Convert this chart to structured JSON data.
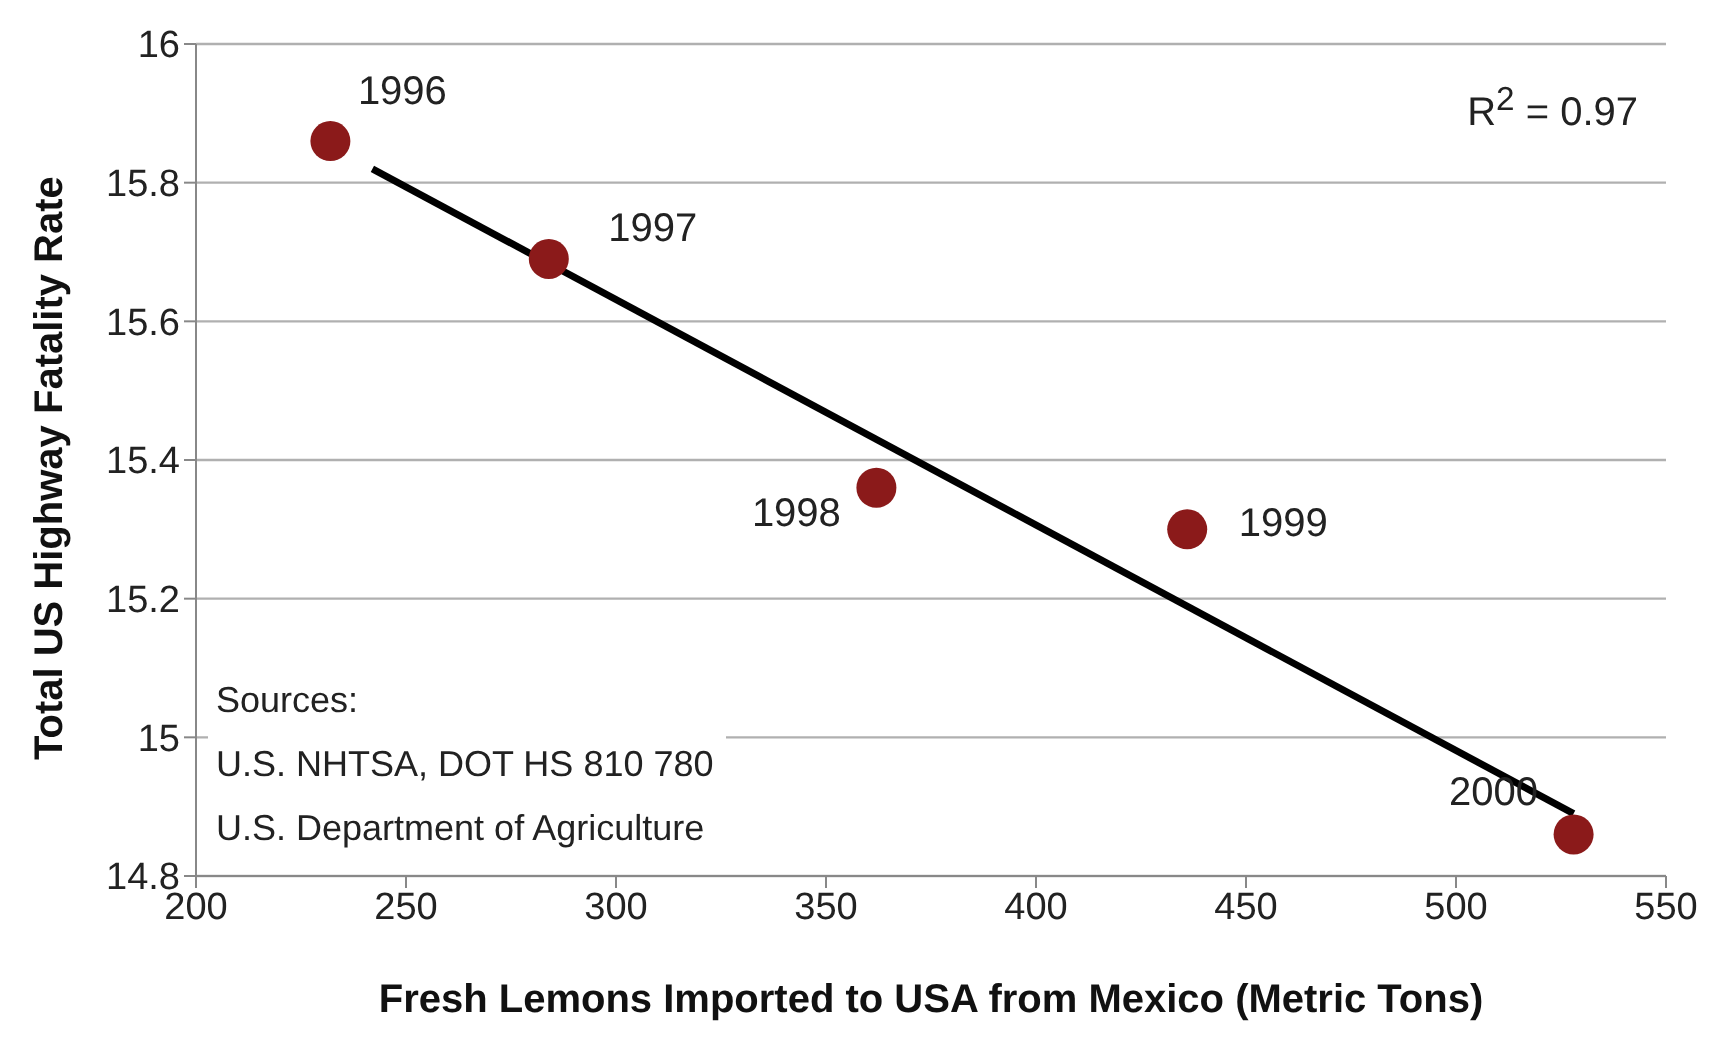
{
  "chart_data": {
    "type": "scatter",
    "xlabel": "Fresh Lemons Imported to USA from Mexico (Metric Tons)",
    "ylabel": "Total US Highway Fatality Rate",
    "series": [
      {
        "color": "#8b1a1a",
        "marker": "circle",
        "x": [
          232,
          284,
          362,
          436,
          528
        ],
        "values": [
          15.86,
          15.69,
          15.36,
          15.3,
          14.86
        ]
      },
      {
        "type": "line",
        "color": "#000000",
        "x": [
          242,
          528
        ],
        "values": [
          15.82,
          14.89
        ]
      }
    ],
    "grid": "y",
    "xlim": [
      200,
      550
    ],
    "xticks": [
      200,
      250,
      300,
      350,
      400,
      450,
      500,
      550
    ],
    "ylim": [
      14.8,
      16
    ],
    "yticks": [
      14.8,
      15,
      15.2,
      15.4,
      15.6,
      15.8,
      16
    ],
    "annotations": [
      "R$^{2}$ = 0.97",
      "Sources:",
      "U.S. NHTSA, DOT HS 810 780",
      "U.S. Department of Agriculture",
      {
        "text": "1996",
        "x": 232,
        "y": 15.86
      },
      {
        "text": "1997",
        "x": 284,
        "y": 15.69
      },
      {
        "text": "1998",
        "x": 362,
        "y": 15.36
      },
      {
        "text": "1999",
        "x": 436,
        "y": 15.3
      },
      {
        "text": "2000",
        "x": 528,
        "y": 14.86
      }
    ]
  }
}
